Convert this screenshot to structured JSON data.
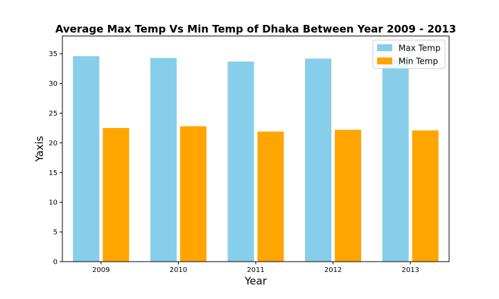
{
  "chart_data": {
    "type": "bar",
    "title": "Average Max Temp Vs Min Temp of Dhaka Between Year 2009 - 2013",
    "xlabel": "Year",
    "ylabel": "Yaxis",
    "categories": [
      "2009",
      "2010",
      "2011",
      "2012",
      "2013"
    ],
    "series": [
      {
        "name": "Max Temp",
        "color": "#87ceeb",
        "values": [
          34.6,
          34.3,
          33.7,
          34.2,
          34.1
        ]
      },
      {
        "name": "Min Temp",
        "color": "#ffa500",
        "values": [
          22.5,
          22.8,
          21.9,
          22.2,
          22.1
        ]
      }
    ],
    "ylim": [
      0,
      38
    ],
    "yticks": [
      0,
      5,
      10,
      15,
      20,
      25,
      30,
      35
    ],
    "grid": false,
    "legend_position": "top-right"
  }
}
